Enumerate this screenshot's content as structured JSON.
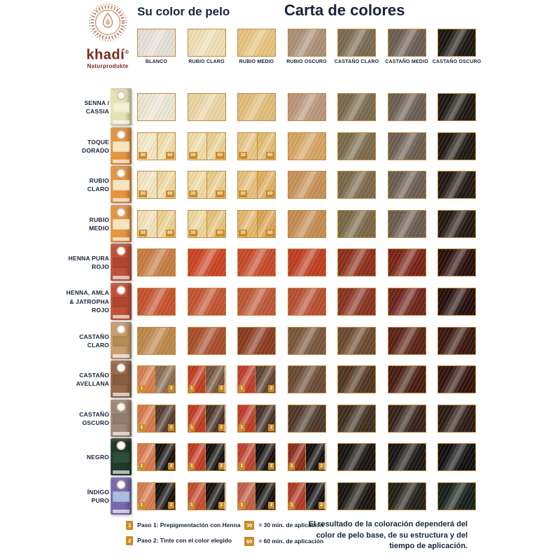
{
  "brand": {
    "name": "khadí",
    "registered": "®",
    "subtitle": "Naturprodukte"
  },
  "headings": {
    "left": "Su color de pelo",
    "right": "Carta de colores"
  },
  "base_colors": [
    {
      "label": "BLANCO",
      "color": "#E7DFD8"
    },
    {
      "label": "RUBIO CLARO",
      "color": "#EFDFB4"
    },
    {
      "label": "RUBIO MEDIO",
      "color": "#E7C47E"
    },
    {
      "label": "RUBIO OSCURO",
      "color": "#AB9077"
    },
    {
      "label": "CASTAÑO CLARO",
      "color": "#7B6A50"
    },
    {
      "label": "CASTAÑO MEDIO",
      "color": "#6B5E53"
    },
    {
      "label": "CASTAÑO OSCURO",
      "color": "#1E1813"
    }
  ],
  "products": [
    {
      "name_lines": [
        "SENNA /",
        "CASSIA"
      ],
      "box": {
        "color": "#E7E2B2",
        "label": "#F5F0D2"
      },
      "cells": [
        {
          "color": "#EDE6D4"
        },
        {
          "color": "#EAD5A2"
        },
        {
          "color": "#E2BD79"
        },
        {
          "color": "#BB9679"
        },
        {
          "color": "#7B6A4E"
        },
        {
          "color": "#6C5E53"
        },
        {
          "color": "#201913"
        }
      ]
    },
    {
      "name_lines": [
        "TOQUE",
        "DORADO"
      ],
      "box": {
        "color": "#E59440",
        "label": "#F5E6C0"
      },
      "cells": [
        {
          "split": [
            "#F4E7C3",
            "#EEDCA7"
          ],
          "badges": [
            "30",
            "60"
          ]
        },
        {
          "split": [
            "#F0DCA7",
            "#EAD191"
          ],
          "badges": [
            "30",
            "60"
          ]
        },
        {
          "split": [
            "#E7C684",
            "#E1BA6E"
          ],
          "badges": [
            "30",
            "60"
          ]
        },
        {
          "color": "#D6A463"
        },
        {
          "color": "#7C6B4B"
        },
        {
          "color": "#6C5E52"
        },
        {
          "color": "#201912"
        }
      ]
    },
    {
      "name_lines": [
        "RUBIO",
        "CLARO"
      ],
      "box": {
        "color": "#E59440",
        "label": "#F5E6C0"
      },
      "cells": [
        {
          "split": [
            "#F2E4BF",
            "#ECD89E"
          ],
          "badges": [
            "30",
            "60"
          ]
        },
        {
          "split": [
            "#EFD9A1",
            "#E8CC88"
          ],
          "badges": [
            "30",
            "60"
          ]
        },
        {
          "split": [
            "#E5C07C",
            "#DFAE5E"
          ],
          "badges": [
            "30",
            "60"
          ]
        },
        {
          "color": "#C79159"
        },
        {
          "color": "#7B6949"
        },
        {
          "color": "#6B5D51"
        },
        {
          "color": "#231912"
        }
      ]
    },
    {
      "name_lines": [
        "RUBIO",
        "MEDIO"
      ],
      "box": {
        "color": "#E59440",
        "label": "#F5E6C0"
      },
      "cells": [
        {
          "split": [
            "#F0E0B6",
            "#E9D08D"
          ],
          "badges": [
            "30",
            "60"
          ]
        },
        {
          "split": [
            "#EDD69B",
            "#E5C279"
          ],
          "badges": [
            "30",
            "60"
          ]
        },
        {
          "split": [
            "#E2B76D",
            "#DBA352"
          ],
          "badges": [
            "30",
            "60"
          ]
        },
        {
          "color": "#C58B52"
        },
        {
          "color": "#7A6847"
        },
        {
          "color": "#6A5C50"
        },
        {
          "color": "#241A13"
        }
      ]
    },
    {
      "name_lines": [
        "HENNA PURA",
        "ROJO"
      ],
      "box": {
        "color": "#C05239",
        "label": "#AE4630"
      },
      "cells": [
        {
          "color": "#C77C42"
        },
        {
          "color": "#CB4323"
        },
        {
          "color": "#C64A2A"
        },
        {
          "color": "#BF3D20"
        },
        {
          "color": "#8E2F1B"
        },
        {
          "color": "#7A2418"
        },
        {
          "color": "#2B100B"
        }
      ]
    },
    {
      "name_lines": [
        "HENNA, AMLA",
        "& JATROPHA",
        "ROJO"
      ],
      "box": {
        "color": "#C05239",
        "label": "#AE4630"
      },
      "cells": [
        {
          "color": "#C6512D"
        },
        {
          "color": "#C25430"
        },
        {
          "color": "#BD5838"
        },
        {
          "color": "#B84F33"
        },
        {
          "color": "#8A3421"
        },
        {
          "color": "#6D251C"
        },
        {
          "color": "#270F0C"
        }
      ]
    },
    {
      "name_lines": [
        "CASTAÑO",
        "CLARO"
      ],
      "box": {
        "color": "#C69D6E",
        "label": "#B68A54"
      },
      "cells": [
        {
          "color": "#BE8748"
        },
        {
          "color": "#A84E2B"
        },
        {
          "color": "#8B3B20"
        },
        {
          "color": "#7A573B"
        },
        {
          "color": "#6C492D"
        },
        {
          "color": "#5B2315"
        },
        {
          "color": "#3B1710"
        }
      ]
    },
    {
      "name_lines": [
        "CASTAÑO",
        "AVELLANA"
      ],
      "box": {
        "color": "#98684A",
        "label": "#8A5C40"
      },
      "cells": [
        {
          "split": [
            "#D87C4B",
            "#8A6B51"
          ],
          "badges": [
            "1",
            "2"
          ]
        },
        {
          "split": [
            "#C33B23",
            "#745440"
          ],
          "badges": [
            "1",
            "2"
          ]
        },
        {
          "split": [
            "#BF3C2B",
            "#5E4130"
          ],
          "badges": [
            "1",
            "2"
          ]
        },
        {
          "color": "#6B4B34"
        },
        {
          "color": "#523720"
        },
        {
          "color": "#481E12"
        },
        {
          "color": "#33150F"
        }
      ]
    },
    {
      "name_lines": [
        "CASTAÑO",
        "OSCURO"
      ],
      "box": {
        "color": "#9F8877",
        "label": "#937C6B"
      },
      "cells": [
        {
          "split": [
            "#D87746",
            "#523A2B"
          ],
          "badges": [
            "1",
            "2"
          ]
        },
        {
          "split": [
            "#C13A21",
            "#493226"
          ],
          "badges": [
            "1",
            "2"
          ]
        },
        {
          "split": [
            "#BD3C29",
            "#443027"
          ],
          "badges": [
            "1",
            "2"
          ]
        },
        {
          "color": "#4E392B"
        },
        {
          "color": "#3F2F20"
        },
        {
          "color": "#37231B"
        },
        {
          "color": "#2D1C15"
        }
      ]
    },
    {
      "name_lines": [
        "NEGRO"
      ],
      "box": {
        "color": "#213A2C",
        "label": "#2E4E3C"
      },
      "cells": [
        {
          "split": [
            "#D8764B",
            "#161210"
          ],
          "badges": [
            "1",
            "2"
          ]
        },
        {
          "split": [
            "#C13A22",
            "#141110"
          ],
          "badges": [
            "1",
            "2"
          ]
        },
        {
          "split": [
            "#BE4030",
            "#131110"
          ],
          "badges": [
            "1",
            "2"
          ]
        },
        {
          "split": [
            "#8D2C1A",
            "#121010"
          ],
          "badges": [
            "1",
            "2"
          ]
        },
        {
          "color": "#191511"
        },
        {
          "color": "#1B1814"
        },
        {
          "color": "#121010"
        }
      ]
    },
    {
      "name_lines": [
        "ÍNDIGO",
        "PURO"
      ],
      "box": {
        "color": "#7768AE",
        "label": "#A9BDE0"
      },
      "cells": [
        {
          "split": [
            "#D87A4E",
            "#151210"
          ],
          "badges": [
            "1",
            "2"
          ]
        },
        {
          "split": [
            "#C64B31",
            "#141110"
          ],
          "badges": [
            "1",
            "2"
          ]
        },
        {
          "split": [
            "#C15D49",
            "#131110"
          ],
          "badges": [
            "1",
            "2"
          ]
        },
        {
          "split": [
            "#AF3A27",
            "#121010"
          ],
          "badges": [
            "1",
            "2"
          ]
        },
        {
          "color": "#1A1712"
        },
        {
          "color": "#232019"
        },
        {
          "color": "#15211B"
        }
      ]
    }
  ],
  "legend": {
    "paso1_badge": "1",
    "paso1_text": "Paso 1: Prepigmentación con Henna",
    "paso2_badge": "2",
    "paso2_text": "Paso 2: Tinte con el color elegido",
    "min30_badge": "30",
    "min30_text": "= 30 min. de aplicación",
    "min60_badge": "60",
    "min60_text": "= 60 min. de aplicación"
  },
  "note_lines": [
    "El resultado de la coloración dependerá del",
    "color de pelo base, de su estructura y del",
    "tiempo de aplicación."
  ],
  "colors": {
    "swatch_border": "#C18B3E",
    "badge_bg": "#CC8C24",
    "heading_text": "#18243C",
    "brand_text": "#7A2B1E",
    "logo_copper": "#B87B52"
  }
}
